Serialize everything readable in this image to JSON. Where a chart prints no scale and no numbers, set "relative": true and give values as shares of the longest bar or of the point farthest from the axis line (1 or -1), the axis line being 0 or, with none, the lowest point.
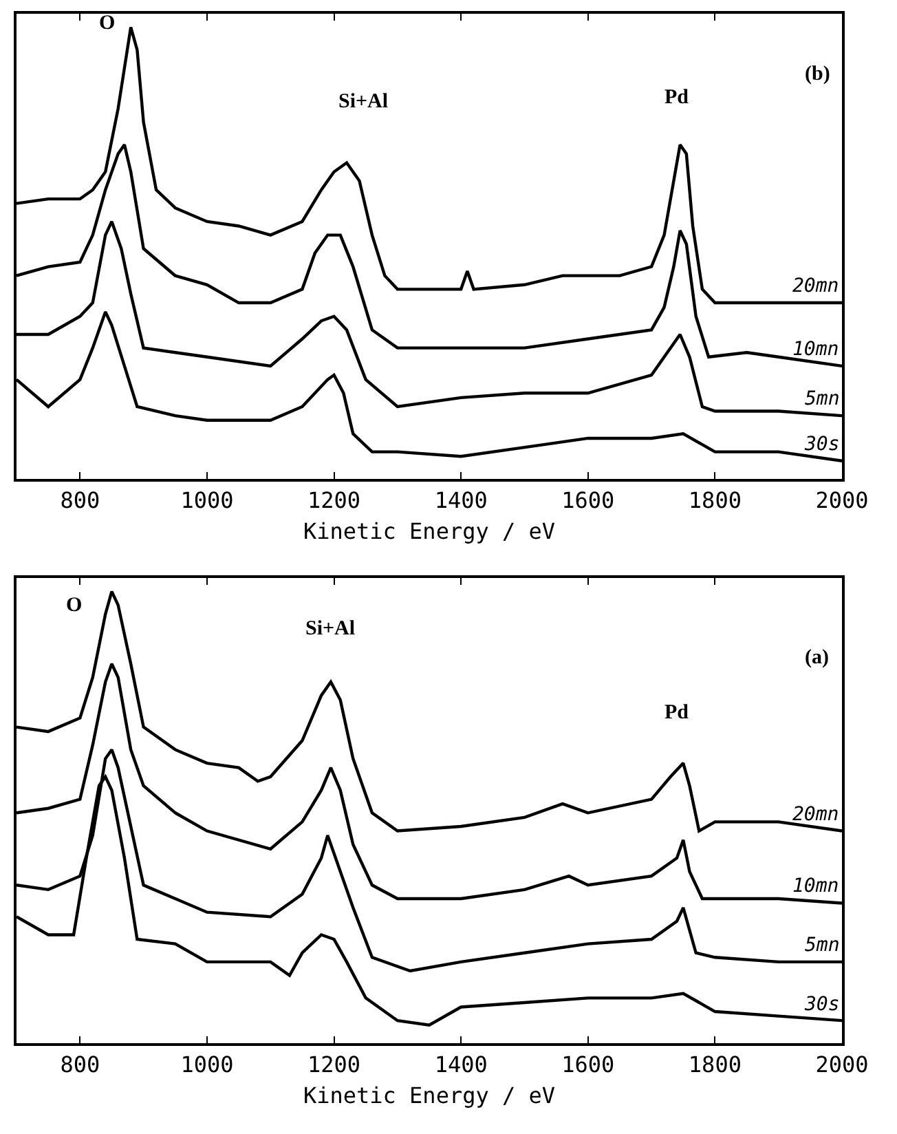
{
  "chart_data": [
    {
      "type": "line",
      "xlabel": "Kinetic Energy / eV",
      "xlim": [
        700,
        2000
      ],
      "xticks": [
        800,
        1000,
        1200,
        1400,
        1600,
        1800,
        2000
      ],
      "relative": true,
      "tick_labels": "x",
      "annotations": [
        "O",
        "Si+Al",
        "Pd",
        "(b)"
      ],
      "series": [
        {
          "name": "20mn",
          "color": "#000000",
          "x": [
            700,
            750,
            800,
            820,
            840,
            860,
            870,
            880,
            890,
            900,
            920,
            950,
            1000,
            1050,
            1100,
            1150,
            1180,
            1200,
            1220,
            1240,
            1260,
            1280,
            1300,
            1400,
            1410,
            1420,
            1500,
            1560,
            1600,
            1650,
            1700,
            1720,
            1735,
            1745,
            1755,
            1765,
            1780,
            1800,
            1900,
            2000
          ],
          "values": [
            0.61,
            0.62,
            0.62,
            0.64,
            0.68,
            0.82,
            0.91,
            1.0,
            0.95,
            0.79,
            0.64,
            0.6,
            0.57,
            0.56,
            0.54,
            0.57,
            0.64,
            0.68,
            0.7,
            0.66,
            0.54,
            0.45,
            0.42,
            0.42,
            0.46,
            0.42,
            0.43,
            0.45,
            0.45,
            0.45,
            0.47,
            0.54,
            0.66,
            0.74,
            0.72,
            0.56,
            0.42,
            0.39,
            0.39,
            0.39
          ]
        },
        {
          "name": "10mn",
          "color": "#000000",
          "x": [
            700,
            750,
            800,
            820,
            840,
            860,
            870,
            880,
            900,
            950,
            1000,
            1050,
            1100,
            1150,
            1170,
            1190,
            1210,
            1230,
            1260,
            1300,
            1400,
            1500,
            1600,
            1700,
            1720,
            1735,
            1745,
            1755,
            1770,
            1790,
            1850,
            1900,
            2000
          ],
          "values": [
            0.45,
            0.47,
            0.48,
            0.54,
            0.64,
            0.72,
            0.74,
            0.68,
            0.51,
            0.45,
            0.43,
            0.39,
            0.39,
            0.42,
            0.5,
            0.54,
            0.54,
            0.47,
            0.33,
            0.29,
            0.29,
            0.29,
            0.31,
            0.33,
            0.38,
            0.47,
            0.55,
            0.52,
            0.36,
            0.27,
            0.28,
            0.27,
            0.25
          ]
        },
        {
          "name": "5mn",
          "color": "#000000",
          "x": [
            700,
            750,
            800,
            820,
            840,
            850,
            865,
            880,
            900,
            950,
            1000,
            1100,
            1150,
            1180,
            1200,
            1220,
            1250,
            1300,
            1400,
            1500,
            1600,
            1700,
            1730,
            1745,
            1760,
            1780,
            1800,
            1900,
            2000
          ],
          "values": [
            0.32,
            0.32,
            0.36,
            0.39,
            0.54,
            0.57,
            0.51,
            0.41,
            0.29,
            0.28,
            0.27,
            0.25,
            0.31,
            0.35,
            0.36,
            0.33,
            0.22,
            0.16,
            0.18,
            0.19,
            0.19,
            0.23,
            0.29,
            0.32,
            0.27,
            0.16,
            0.15,
            0.15,
            0.14
          ]
        },
        {
          "name": "30s",
          "color": "#000000",
          "x": [
            700,
            750,
            800,
            820,
            840,
            850,
            870,
            890,
            950,
            1000,
            1100,
            1150,
            1190,
            1200,
            1215,
            1230,
            1260,
            1300,
            1400,
            1500,
            1600,
            1650,
            1700,
            1750,
            1800,
            1900,
            2000
          ],
          "values": [
            0.22,
            0.16,
            0.22,
            0.29,
            0.37,
            0.34,
            0.25,
            0.16,
            0.14,
            0.13,
            0.13,
            0.16,
            0.22,
            0.23,
            0.19,
            0.1,
            0.06,
            0.06,
            0.05,
            0.07,
            0.09,
            0.09,
            0.09,
            0.1,
            0.06,
            0.06,
            0.04
          ]
        }
      ]
    },
    {
      "type": "line",
      "xlabel": "Kinetic Energy / eV",
      "xlim": [
        700,
        2000
      ],
      "xticks": [
        800,
        1000,
        1200,
        1400,
        1600,
        1800,
        2000
      ],
      "relative": true,
      "tick_labels": "x",
      "annotations": [
        "O",
        "Si+Al",
        "Pd",
        "(a)"
      ],
      "series": [
        {
          "name": "20mn",
          "color": "#000000",
          "x": [
            700,
            750,
            800,
            820,
            840,
            850,
            860,
            880,
            900,
            950,
            1000,
            1050,
            1080,
            1100,
            1150,
            1180,
            1195,
            1210,
            1230,
            1260,
            1300,
            1400,
            1500,
            1560,
            1600,
            1700,
            1730,
            1750,
            1760,
            1775,
            1800,
            1900,
            2000
          ],
          "values": [
            0.7,
            0.69,
            0.72,
            0.81,
            0.95,
            1.0,
            0.97,
            0.84,
            0.7,
            0.65,
            0.62,
            0.61,
            0.58,
            0.59,
            0.67,
            0.77,
            0.8,
            0.76,
            0.63,
            0.51,
            0.47,
            0.48,
            0.5,
            0.53,
            0.51,
            0.54,
            0.59,
            0.62,
            0.57,
            0.47,
            0.49,
            0.49,
            0.47
          ]
        },
        {
          "name": "10mn",
          "color": "#000000",
          "x": [
            700,
            750,
            800,
            820,
            840,
            850,
            860,
            880,
            900,
            950,
            1000,
            1100,
            1150,
            1180,
            1195,
            1210,
            1230,
            1260,
            1300,
            1400,
            1500,
            1570,
            1600,
            1700,
            1740,
            1750,
            1760,
            1780,
            1900,
            2000
          ],
          "values": [
            0.51,
            0.52,
            0.54,
            0.66,
            0.8,
            0.84,
            0.81,
            0.65,
            0.57,
            0.51,
            0.47,
            0.43,
            0.49,
            0.56,
            0.61,
            0.56,
            0.44,
            0.35,
            0.32,
            0.32,
            0.34,
            0.37,
            0.35,
            0.37,
            0.41,
            0.45,
            0.38,
            0.32,
            0.32,
            0.31
          ]
        },
        {
          "name": "5mn",
          "color": "#000000",
          "x": [
            700,
            750,
            800,
            820,
            840,
            850,
            860,
            880,
            900,
            950,
            1000,
            1100,
            1150,
            1180,
            1190,
            1200,
            1230,
            1260,
            1320,
            1400,
            1500,
            1600,
            1700,
            1740,
            1750,
            1770,
            1800,
            1900,
            2000
          ],
          "values": [
            0.35,
            0.34,
            0.37,
            0.46,
            0.63,
            0.65,
            0.61,
            0.48,
            0.35,
            0.32,
            0.29,
            0.28,
            0.33,
            0.41,
            0.46,
            0.42,
            0.3,
            0.19,
            0.16,
            0.18,
            0.2,
            0.22,
            0.23,
            0.27,
            0.3,
            0.2,
            0.19,
            0.18,
            0.18
          ]
        },
        {
          "name": "30s",
          "color": "#000000",
          "x": [
            700,
            750,
            790,
            810,
            830,
            840,
            850,
            870,
            890,
            950,
            1000,
            1100,
            1130,
            1150,
            1180,
            1200,
            1220,
            1250,
            1300,
            1350,
            1400,
            1500,
            1600,
            1700,
            1750,
            1800,
            1900,
            2000
          ],
          "values": [
            0.28,
            0.24,
            0.24,
            0.41,
            0.57,
            0.59,
            0.56,
            0.41,
            0.23,
            0.22,
            0.18,
            0.18,
            0.15,
            0.2,
            0.24,
            0.23,
            0.18,
            0.1,
            0.05,
            0.04,
            0.08,
            0.09,
            0.1,
            0.1,
            0.11,
            0.07,
            0.06,
            0.05
          ]
        }
      ]
    }
  ]
}
